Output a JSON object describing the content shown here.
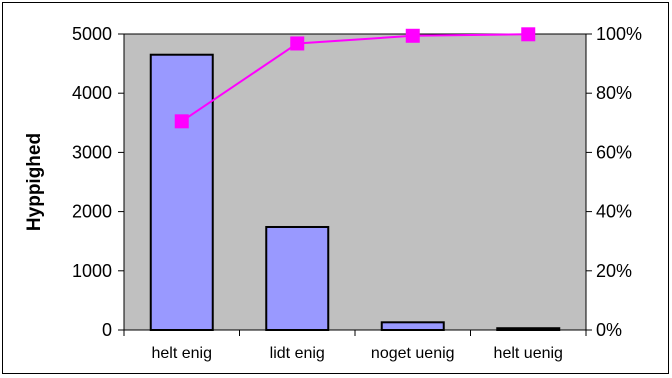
{
  "chart_data": {
    "type": "bar",
    "categories": [
      "helt enig",
      "lidt enig",
      "noget uenig",
      "helt uenig"
    ],
    "series": [
      {
        "type": "bar",
        "axis": "left",
        "values": [
          4650,
          1740,
          130,
          30
        ],
        "color": "#9999ff"
      },
      {
        "type": "line",
        "axis": "right",
        "values": [
          70.5,
          96.8,
          99.4,
          99.9
        ],
        "color": "#ff00ff"
      }
    ],
    "ylabel": "Hyppighed",
    "ylim": [
      0,
      5000
    ],
    "y_ticks": [
      "0",
      "1000",
      "2000",
      "3000",
      "4000",
      "5000"
    ],
    "y2lim": [
      0,
      100
    ],
    "y2_ticks": [
      "0%",
      "20%",
      "40%",
      "60%",
      "80%",
      "100%"
    ],
    "grid": false,
    "plot_background": "#c0c0c0"
  }
}
